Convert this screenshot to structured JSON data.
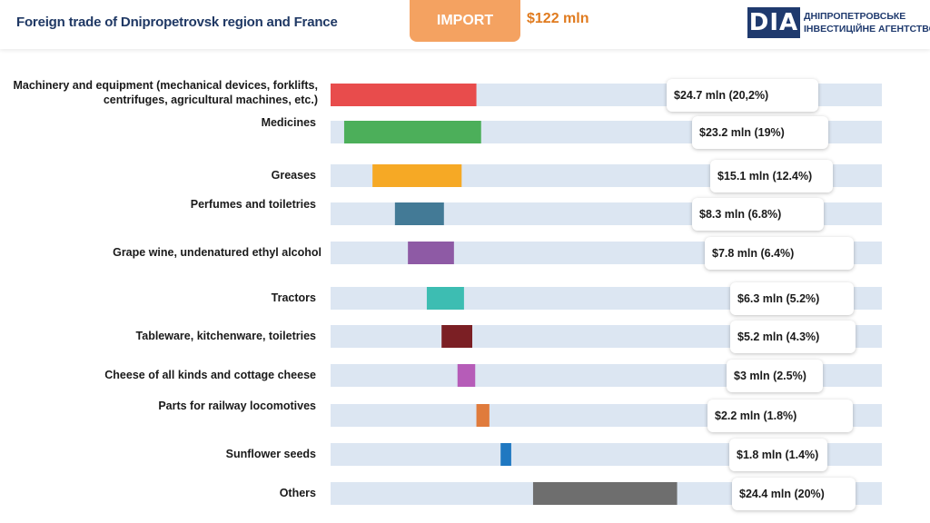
{
  "header": {
    "title": "Foreign trade of Dnipropetrovsk region and France",
    "import_label": "IMPORT",
    "total": "$122 mln"
  },
  "logo": {
    "mark": "DIA",
    "line1": "ДНІПРОПЕТРОВСЬКЕ",
    "line2": "ІНВЕСТИЦІЙНЕ АГЕНТСТВО"
  },
  "colors": {
    "track": "#dce6f2",
    "accent": "#f4a261",
    "brand": "#1f3a6e"
  },
  "chart_data": {
    "type": "bar",
    "orientation": "horizontal",
    "unit": "$ mln",
    "total": 122,
    "categories": [
      "Machinery and equipment (mechanical devices, forklifts, centrifuges, agricultural machines, etc.)",
      "Medicines",
      "Greases",
      "Perfumes and toiletries",
      "Grape wine, undenatured ethyl alcohol",
      "Tractors",
      "Tableware, kitchenware, toiletries",
      "Cheese of all kinds and  cottage cheese",
      "Parts for railway locomotives",
      "Sunflower seeds",
      "Others"
    ],
    "values": [
      24.7,
      23.2,
      15.1,
      8.3,
      7.8,
      6.3,
      5.2,
      3,
      2.2,
      1.8,
      24.4
    ],
    "shares": [
      20.2,
      19,
      12.4,
      6.8,
      6.4,
      5.2,
      4.3,
      2.5,
      1.8,
      1.4,
      20
    ],
    "value_labels": [
      "$24.7 mln (20,2%)",
      "$23.2 mln (19%)",
      "$15.1 mln (12.4%)",
      "$8.3 mln (6.8%)",
      "$7.8 mln (6.4%)",
      "$6.3 mln (5.2%)",
      "$5.2 mln (4.3%)",
      "$3 mln (2.5%)",
      "$2.2 mln (1.8%)",
      "$1.8 mln (1.4%)",
      "$24.4 mln (20%)"
    ],
    "bar_colors": [
      "#e84c4c",
      "#4caf5a",
      "#f6a925",
      "#437a96",
      "#8e5aa5",
      "#3dbdb2",
      "#7b1f24",
      "#b65cb8",
      "#e07b3c",
      "#1f78c1",
      "#6e6e6e"
    ],
    "grid": false,
    "legend": "none"
  }
}
